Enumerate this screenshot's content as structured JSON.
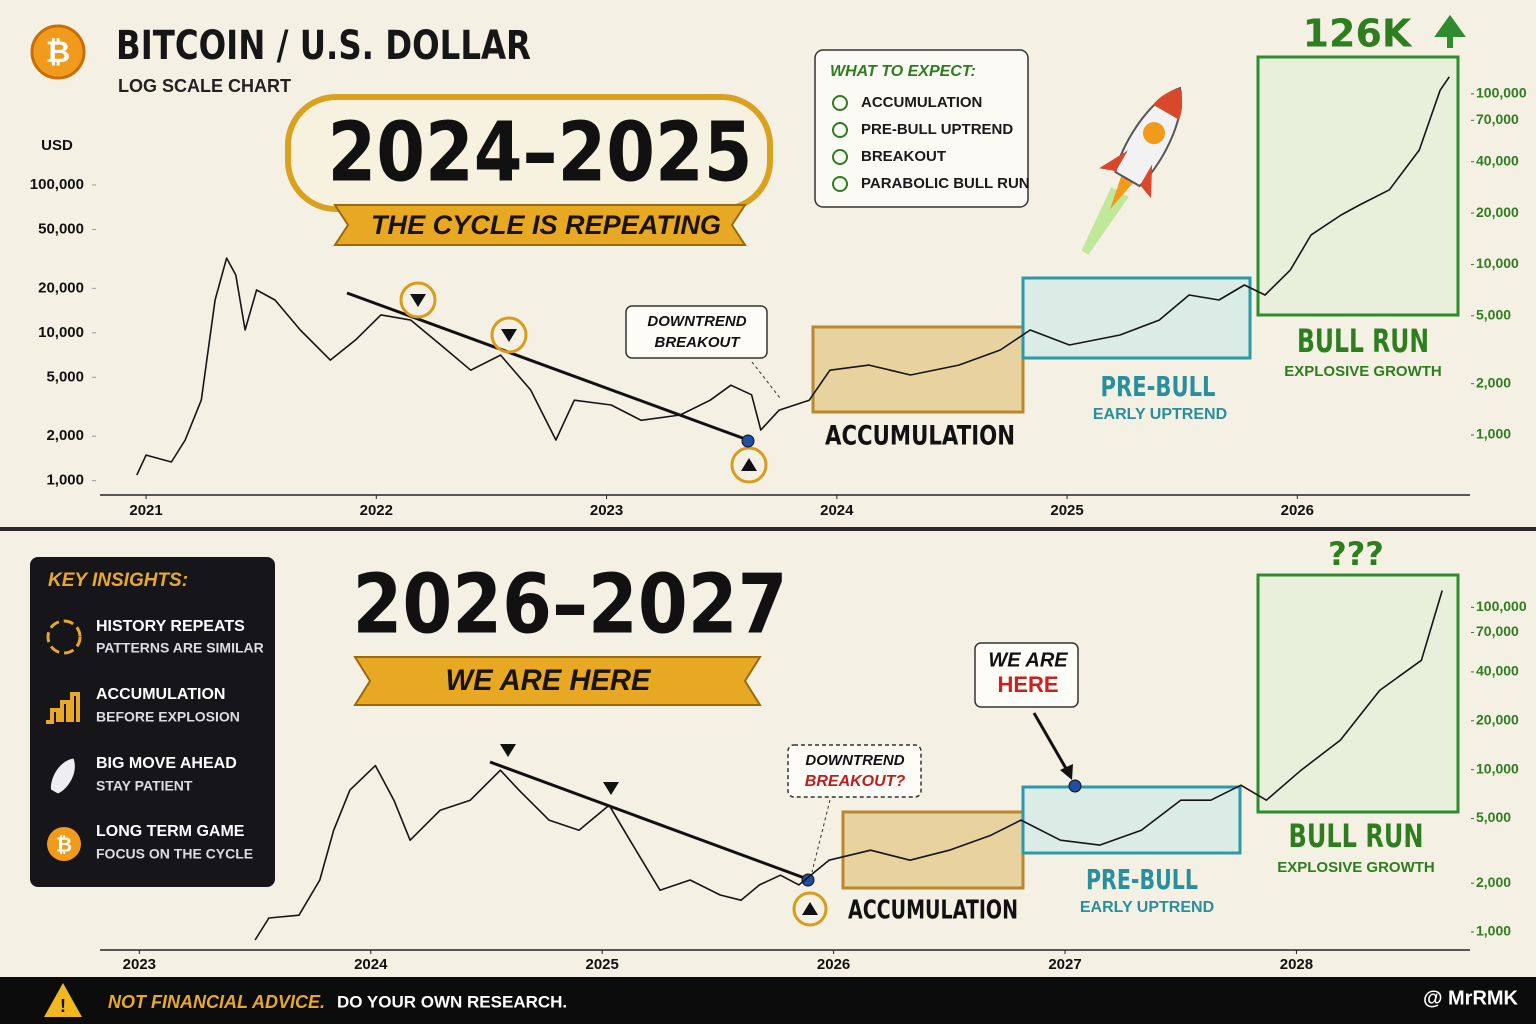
{
  "header": {
    "title": "BITCOIN / U.S. DOLLAR",
    "subtitle": "LOG SCALE CHART"
  },
  "expect": {
    "title": "WHAT TO EXPECT:",
    "items": [
      "ACCUMULATION",
      "PRE-BULL UPTREND",
      "BREAKOUT",
      "PARABOLIC BULL RUN"
    ]
  },
  "insights": {
    "title": "KEY INSIGHTS:",
    "items": [
      {
        "title": "HISTORY REPEATS",
        "text": "PATTERNS ARE SIMILAR"
      },
      {
        "title": "ACCUMULATION",
        "text": "BEFORE EXPLOSION"
      },
      {
        "title": "BIG MOVE AHEAD",
        "text": "STAY PATIENT"
      },
      {
        "title": "LONG TERM GAME",
        "text": "FOCUS ON THE CYCLE"
      }
    ]
  },
  "footer": {
    "warning": "NOT FINANCIAL ADVICE.",
    "text": "DO YOUR OWN RESEARCH.",
    "handle": "@ MrRMK"
  },
  "chart_data": [
    {
      "type": "line",
      "title": "2024–2025",
      "subtitle": "THE CYCLE IS REPEATING",
      "y_label": "USD",
      "log_scale": true,
      "annotations": {
        "peak": "126K",
        "breakout": [
          "DOWNTREND",
          "BREAKOUT"
        ],
        "accumulation": "ACCUMULATION",
        "pre_bull": "PRE-BULL",
        "pre_bull_note": "EARLY UPTREND",
        "bull_run": "BULL RUN",
        "bull_run_note": "EXPLOSIVE GROWTH"
      },
      "xlim": [
        2020.8,
        2026.75
      ],
      "xticks": [
        2021,
        2022,
        2023,
        2024,
        2025,
        2026
      ],
      "ylim": [
        800,
        700000
      ],
      "yticks": [
        {
          "value": 1000,
          "label": "1,000"
        },
        {
          "value": 2000,
          "label": "2,000"
        },
        {
          "value": 5000,
          "label": "5,000"
        },
        {
          "value": 10000,
          "label": "10,000"
        },
        {
          "value": 20000,
          "label": "20,000"
        },
        {
          "value": 50000,
          "label": "50,000"
        },
        {
          "value": 100000,
          "label": "100,000"
        }
      ],
      "y2lim": [
        445,
        158000
      ],
      "y2ticks": [
        {
          "value": 1000,
          "label": "1,000"
        },
        {
          "value": 2000,
          "label": "2,000"
        },
        {
          "value": 5000,
          "label": "5,000"
        },
        {
          "value": 10000,
          "label": "10,000"
        },
        {
          "value": 20000,
          "label": "20,000"
        },
        {
          "value": 40000,
          "label": "40,000"
        },
        {
          "value": 70000,
          "label": "70,000"
        },
        {
          "value": 100000,
          "label": "100,000"
        }
      ],
      "x": [
        2020.96,
        2021.0,
        2021.11,
        2021.17,
        2021.24,
        2021.3,
        2021.35,
        2021.39,
        2021.43,
        2021.48,
        2021.56,
        2021.67,
        2021.8,
        2021.91,
        2022.02,
        2022.15,
        2022.28,
        2022.41,
        2022.54,
        2022.67,
        2022.78,
        2022.86,
        2023.02,
        2023.15,
        2023.32,
        2023.45,
        2023.54,
        2023.63,
        2023.67,
        2023.75,
        2023.88,
        2023.97,
        2024.14,
        2024.32,
        2024.53,
        2024.71,
        2024.84,
        2025.01,
        2025.23,
        2025.4,
        2025.53,
        2025.66,
        2025.77,
        2025.86,
        2025.97,
        2026.06,
        2026.19,
        2026.27,
        2026.4,
        2026.53,
        2026.62,
        2026.66
      ],
      "series": [
        {
          "color": "#151515",
          "axis": "y2",
          "values": [
            582,
            763,
            695,
            935,
            1603,
            6194,
            10900,
            8670,
            4130,
            7080,
            6190,
            4130,
            2750,
            3610,
            5060,
            4720,
            3370,
            2400,
            2940,
            1840,
            935,
            1600,
            1500,
            1220,
            1310,
            1600,
            1960,
            1720,
            1070,
            1400,
            1600,
            2400,
            2570,
            2250,
            2570,
            3150,
            4130,
            3370,
            3860,
            4720,
            6620,
            6190,
            7580,
            6620,
            9290,
            14900,
            19500,
            22300,
            27400,
            46900,
            105000,
            126000
          ]
        }
      ]
    },
    {
      "type": "line",
      "title": "2026–2027",
      "subtitle": "WE ARE HERE",
      "log_scale": true,
      "annotations": {
        "peak": "???",
        "breakout": [
          "DOWNTREND",
          "BREAKOUT?"
        ],
        "here": [
          "WE ARE",
          "HERE"
        ],
        "accumulation": "ACCUMULATION",
        "pre_bull": "PRE-BULL",
        "pre_bull_note": "EARLY UPTREND",
        "bull_run": "BULL RUN",
        "bull_run_note": "EXPLOSIVE GROWTH"
      },
      "xlim": [
        2022.83,
        2028.75
      ],
      "xticks": [
        2023,
        2024,
        2025,
        2026,
        2027,
        2028
      ],
      "y2lim": [
        775,
        242000
      ],
      "y2ticks": [
        {
          "value": 1000,
          "label": "1,000"
        },
        {
          "value": 2000,
          "label": "2,000"
        },
        {
          "value": 5000,
          "label": "5,000"
        },
        {
          "value": 10000,
          "label": "10,000"
        },
        {
          "value": 20000,
          "label": "20,000"
        },
        {
          "value": 40000,
          "label": "40,000"
        },
        {
          "value": 70000,
          "label": "70,000"
        },
        {
          "value": 100000,
          "label": "100,000"
        }
      ],
      "x": [
        2023.5,
        2023.56,
        2023.69,
        2023.78,
        2023.84,
        2023.91,
        2024.02,
        2024.1,
        2024.17,
        2024.3,
        2024.43,
        2024.56,
        2024.64,
        2024.77,
        2024.9,
        2025.03,
        2025.12,
        2025.25,
        2025.38,
        2025.51,
        2025.6,
        2025.68,
        2025.77,
        2025.85,
        2025.98,
        2026.16,
        2026.33,
        2026.5,
        2026.68,
        2026.81,
        2026.98,
        2027.15,
        2027.33,
        2027.5,
        2027.63,
        2027.76,
        2027.87,
        2028.02,
        2028.19,
        2028.36,
        2028.54,
        2028.63
      ],
      "series": [
        {
          "color": "#151515",
          "axis": "y2",
          "values": [
            893,
            1220,
            1270,
            2090,
            4240,
            7480,
            10600,
            6490,
            3680,
            5630,
            6490,
            9930,
            7480,
            4890,
            4240,
            6040,
            3680,
            1810,
            2090,
            1690,
            1570,
            1950,
            2240,
            1950,
            2770,
            3190,
            2770,
            3190,
            3950,
            4890,
            3680,
            3430,
            4240,
            6490,
            6490,
            8020,
            6490,
            9930,
            15200,
            30800,
            47200,
            127000
          ]
        }
      ]
    }
  ]
}
